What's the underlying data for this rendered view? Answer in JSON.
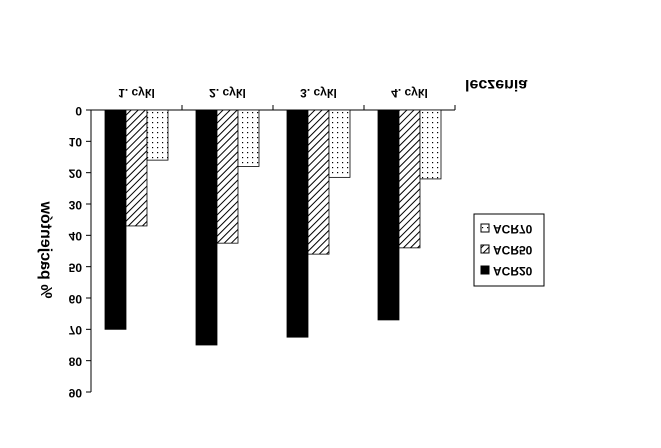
{
  "chart_data": {
    "type": "bar",
    "y_label": "% pacjentów",
    "x_label": "leczenia",
    "categories": [
      "1. cykl",
      "2. cykl",
      "3. cykl",
      "4. cykl"
    ],
    "series": [
      {
        "name": "ACR20",
        "color": "#000000",
        "pattern": "solid",
        "values": [
          70,
          75,
          72.5,
          67
        ]
      },
      {
        "name": "ACR50",
        "color": "#000000",
        "pattern": "hatch",
        "values": [
          37,
          42.5,
          46,
          44
        ]
      },
      {
        "name": "ACR70",
        "color": "#000000",
        "pattern": "dots",
        "values": [
          16,
          18,
          21.5,
          22
        ]
      }
    ],
    "ylim": [
      0,
      90
    ],
    "yticks": [
      0,
      10,
      20,
      30,
      40,
      50,
      60,
      70,
      80,
      90
    ],
    "inverted": true,
    "grid": false
  }
}
